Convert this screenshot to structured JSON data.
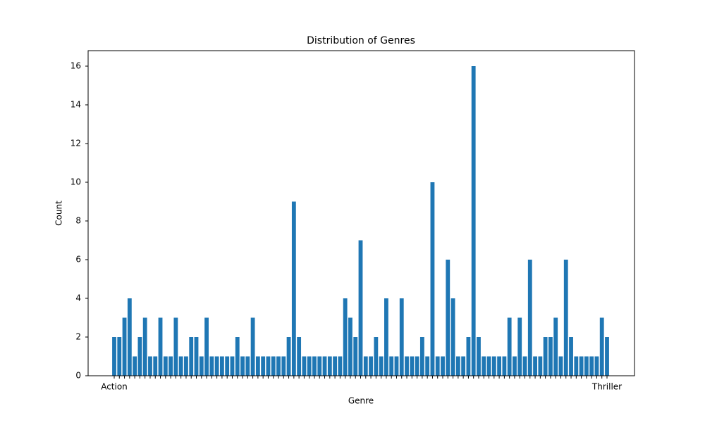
{
  "chart_data": {
    "type": "bar",
    "title": "Distribution of Genres",
    "xlabel": "Genre",
    "ylabel": "Count",
    "categories": [
      "Action",
      null,
      null,
      null,
      null,
      null,
      null,
      null,
      null,
      null,
      null,
      null,
      null,
      null,
      null,
      null,
      null,
      null,
      null,
      null,
      null,
      null,
      null,
      null,
      null,
      null,
      null,
      null,
      null,
      null,
      null,
      null,
      null,
      null,
      null,
      null,
      null,
      null,
      null,
      null,
      null,
      null,
      null,
      null,
      null,
      null,
      null,
      null,
      null,
      null,
      null,
      null,
      null,
      null,
      null,
      null,
      null,
      null,
      null,
      null,
      null,
      null,
      null,
      null,
      null,
      null,
      null,
      null,
      null,
      null,
      null,
      null,
      null,
      null,
      null,
      null,
      null,
      null,
      null,
      null,
      null,
      null,
      null,
      null,
      null,
      null,
      null,
      null,
      null,
      null,
      null,
      null,
      null,
      null,
      null,
      null,
      "Thriller"
    ],
    "values": [
      2,
      2,
      3,
      4,
      1,
      2,
      3,
      1,
      1,
      3,
      1,
      1,
      3,
      1,
      1,
      2,
      2,
      1,
      3,
      1,
      1,
      1,
      1,
      1,
      2,
      1,
      1,
      3,
      1,
      1,
      1,
      1,
      1,
      1,
      2,
      9,
      2,
      1,
      1,
      1,
      1,
      1,
      1,
      1,
      1,
      4,
      3,
      2,
      7,
      1,
      1,
      2,
      1,
      4,
      1,
      1,
      4,
      1,
      1,
      1,
      2,
      1,
      10,
      1,
      1,
      6,
      4,
      1,
      1,
      2,
      16,
      2,
      1,
      1,
      1,
      1,
      1,
      3,
      1,
      3,
      1,
      6,
      1,
      1,
      2,
      2,
      3,
      1,
      6,
      2,
      1,
      1,
      1,
      1,
      1,
      3,
      2
    ],
    "color": "#1f77b4",
    "ylim": [
      0,
      16.8
    ],
    "yticks": [
      0,
      2,
      4,
      6,
      8,
      10,
      12,
      14,
      16
    ],
    "grid": false
  }
}
